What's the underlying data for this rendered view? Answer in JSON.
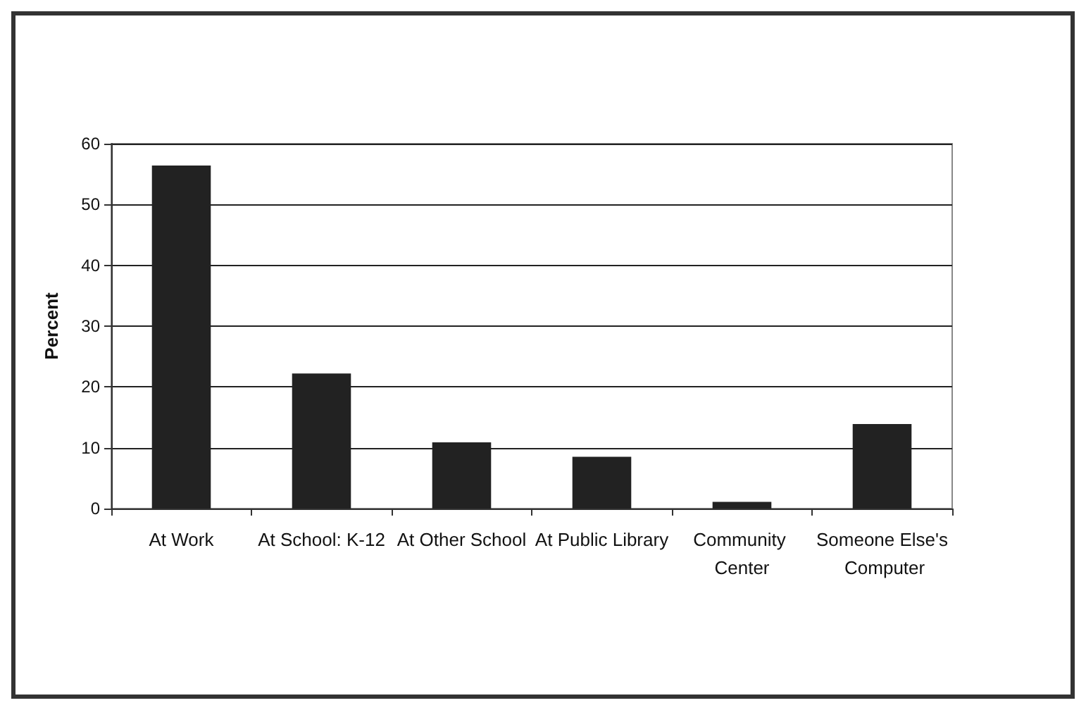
{
  "chart_data": {
    "type": "bar",
    "ylabel": "Percent",
    "categories": [
      "At Work",
      "At School: K-12",
      "At Other School",
      "At Public Library",
      "Community Center",
      "Someone Else's Computer"
    ],
    "values": [
      56.4,
      22.2,
      10.9,
      8.5,
      1.1,
      13.9
    ],
    "color": "#222222",
    "ylim": [
      0,
      60
    ],
    "yticks": [
      0,
      10,
      20,
      30,
      40,
      50,
      60
    ],
    "grid": "y"
  }
}
